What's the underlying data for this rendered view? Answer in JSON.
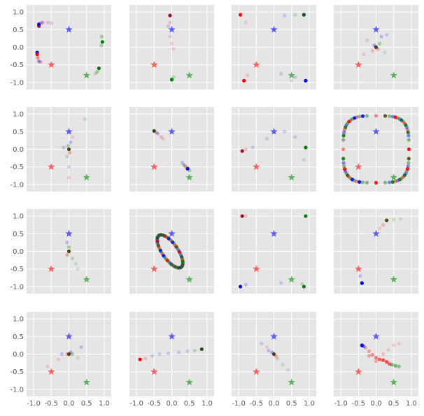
{
  "chart_data": {
    "type": "scatter",
    "layout": {
      "rows": 4,
      "cols": 4,
      "sharex": true,
      "sharey": true
    },
    "xlim": [
      -1.2,
      1.2
    ],
    "ylim": [
      -1.2,
      1.2
    ],
    "xticks": [
      "-1.0",
      "-0.5",
      "0.0",
      "0.5",
      "1.0"
    ],
    "yticks": [
      "1.0",
      "0.5",
      "0.0",
      "-0.5",
      "-1.0"
    ],
    "xtick_values": [
      -1.0,
      -0.5,
      0.0,
      0.5,
      1.0
    ],
    "ytick_values": [
      1.0,
      0.5,
      0.0,
      -0.5,
      -1.0
    ],
    "grid": true,
    "style": {
      "background": "#e5e5e5",
      "grid_color": "#ffffff"
    },
    "anchors": [
      {
        "color": "#4444ff",
        "x": 0.0,
        "y": 0.5
      },
      {
        "color": "#ff4444",
        "x": -0.5,
        "y": -0.5
      },
      {
        "color": "#44aa44",
        "x": 0.5,
        "y": -0.8
      }
    ],
    "colors": {
      "red": "#ff0000",
      "green": "#008000",
      "blue": "#0000ff",
      "dark_green": "#1e4d1e",
      "dark_red": "#9e0f2f",
      "olive": "#4a4a10"
    },
    "panels": [
      {
        "points": [
          {
            "x": -0.85,
            "y": 0.6,
            "c": "red",
            "a": 1
          },
          {
            "x": -0.85,
            "y": 0.65,
            "c": "blue",
            "a": 1
          },
          {
            "x": -0.8,
            "y": 0.68,
            "c": "red",
            "a": 0.3
          },
          {
            "x": -0.75,
            "y": 0.7,
            "c": "blue",
            "a": 0.3
          },
          {
            "x": -0.6,
            "y": 0.7,
            "c": "red",
            "a": 0.2
          },
          {
            "x": -0.5,
            "y": 0.68,
            "c": "blue",
            "a": 0.15
          },
          {
            "x": -0.9,
            "y": -0.15,
            "c": "blue",
            "a": 1
          },
          {
            "x": -0.88,
            "y": -0.3,
            "c": "red",
            "a": 0.4
          },
          {
            "x": -0.85,
            "y": -0.4,
            "c": "blue",
            "a": 0.4
          },
          {
            "x": -0.8,
            "y": -0.42,
            "c": "red",
            "a": 0.3
          },
          {
            "x": -0.9,
            "y": -0.2,
            "c": "red",
            "a": 1
          },
          {
            "x": 0.95,
            "y": 0.15,
            "c": "green",
            "a": 1
          },
          {
            "x": 0.93,
            "y": 0.3,
            "c": "green",
            "a": 0.3
          },
          {
            "x": 0.92,
            "y": 0.05,
            "c": "green",
            "a": 0.3
          },
          {
            "x": 0.85,
            "y": -0.6,
            "c": "green",
            "a": 1
          },
          {
            "x": 0.8,
            "y": -0.7,
            "c": "green",
            "a": 0.3
          },
          {
            "x": 0.75,
            "y": -0.75,
            "c": "green",
            "a": 0.2
          }
        ]
      },
      {
        "points": [
          {
            "x": -0.05,
            "y": 0.9,
            "c": "dark_red",
            "a": 1
          },
          {
            "x": -0.05,
            "y": 0.7,
            "c": "red",
            "a": 0.2
          },
          {
            "x": -0.05,
            "y": 0.3,
            "c": "red",
            "a": 0.15
          },
          {
            "x": 0.0,
            "y": 0.1,
            "c": "red",
            "a": 0.15
          },
          {
            "x": 0.05,
            "y": -0.05,
            "c": "red",
            "a": 0.15
          },
          {
            "x": -0.1,
            "y": 0.6,
            "c": "blue",
            "a": 0.15
          },
          {
            "x": 0.0,
            "y": -0.92,
            "c": "green",
            "a": 1
          },
          {
            "x": 0.05,
            "y": -0.85,
            "c": "green",
            "a": 0.2
          }
        ]
      },
      {
        "points": [
          {
            "x": -0.95,
            "y": 0.92,
            "c": "red",
            "a": 1
          },
          {
            "x": -0.8,
            "y": 0.7,
            "c": "red",
            "a": 0.15
          },
          {
            "x": -0.85,
            "y": -0.95,
            "c": "red",
            "a": 1
          },
          {
            "x": -0.75,
            "y": -0.8,
            "c": "red",
            "a": 0.15
          },
          {
            "x": 0.85,
            "y": 0.92,
            "c": "dark_green",
            "a": 1
          },
          {
            "x": 0.6,
            "y": 0.92,
            "c": "green",
            "a": 0.2
          },
          {
            "x": 0.3,
            "y": 0.9,
            "c": "blue",
            "a": 0.15
          },
          {
            "x": 0.9,
            "y": -0.95,
            "c": "blue",
            "a": 1
          },
          {
            "x": 0.6,
            "y": -0.85,
            "c": "blue",
            "a": 0.15
          },
          {
            "x": 0.2,
            "y": -0.75,
            "c": "blue",
            "a": 0.15
          },
          {
            "x": 0.5,
            "y": -0.95,
            "c": "green",
            "a": 0.15
          }
        ]
      },
      {
        "points": [
          {
            "x": 0.0,
            "y": 0.0,
            "c": "olive",
            "a": 1
          },
          {
            "x": -0.05,
            "y": 0.05,
            "c": "blue",
            "a": 0.3
          },
          {
            "x": 0.05,
            "y": -0.05,
            "c": "red",
            "a": 0.3
          },
          {
            "x": 0.1,
            "y": 0.1,
            "c": "green",
            "a": 0.3
          },
          {
            "x": -0.1,
            "y": -0.1,
            "c": "red",
            "a": 0.2
          },
          {
            "x": 0.15,
            "y": 0.3,
            "c": "blue",
            "a": 0.2
          },
          {
            "x": -0.25,
            "y": 0.2,
            "c": "red",
            "a": 0.15
          },
          {
            "x": 0.25,
            "y": -0.15,
            "c": "green",
            "a": 0.15
          },
          {
            "x": -0.35,
            "y": -0.2,
            "c": "red",
            "a": 0.15
          },
          {
            "x": 0.3,
            "y": 0.35,
            "c": "blue",
            "a": 0.15
          }
        ]
      },
      {
        "points": [
          {
            "x": 0.0,
            "y": 0.0,
            "c": "olive",
            "a": 1
          },
          {
            "x": -0.02,
            "y": 0.1,
            "c": "green",
            "a": 0.3
          },
          {
            "x": 0.02,
            "y": -0.1,
            "c": "red",
            "a": 0.3
          },
          {
            "x": 0.05,
            "y": 0.2,
            "c": "blue",
            "a": 0.2
          },
          {
            "x": -0.05,
            "y": -0.2,
            "c": "green",
            "a": 0.2
          },
          {
            "x": 0.1,
            "y": 0.35,
            "c": "red",
            "a": 0.15
          },
          {
            "x": 0.45,
            "y": 0.85,
            "c": "green",
            "a": 0.15
          },
          {
            "x": 0.0,
            "y": -0.5,
            "c": "blue",
            "a": 0.15
          },
          {
            "x": 0.0,
            "y": -0.8,
            "c": "red",
            "a": 0.15
          },
          {
            "x": -0.15,
            "y": 0.05,
            "c": "blue",
            "a": 0.2
          }
        ]
      },
      {
        "points": [
          {
            "x": -0.5,
            "y": 0.52,
            "c": "dark_green",
            "a": 1
          },
          {
            "x": -0.45,
            "y": 0.48,
            "c": "red",
            "a": 0.3
          },
          {
            "x": -0.4,
            "y": 0.45,
            "c": "blue",
            "a": 0.3
          },
          {
            "x": -0.3,
            "y": 0.35,
            "c": "red",
            "a": 0.2
          },
          {
            "x": -0.25,
            "y": 0.3,
            "c": "red",
            "a": 0.15
          },
          {
            "x": 0.45,
            "y": -0.55,
            "c": "blue",
            "a": 1
          },
          {
            "x": 0.4,
            "y": -0.5,
            "c": "red",
            "a": 0.4
          },
          {
            "x": 0.35,
            "y": -0.45,
            "c": "green",
            "a": 0.4
          },
          {
            "x": 0.3,
            "y": -0.38,
            "c": "blue",
            "a": 0.2
          },
          {
            "x": 0.5,
            "y": -0.6,
            "c": "green",
            "a": 0.3
          }
        ]
      },
      {
        "points": [
          {
            "x": -0.9,
            "y": -0.05,
            "c": "dark_red",
            "a": 1
          },
          {
            "x": -0.8,
            "y": 0.0,
            "c": "red",
            "a": 0.2
          },
          {
            "x": -0.6,
            "y": 0.05,
            "c": "blue",
            "a": 0.15
          },
          {
            "x": -0.2,
            "y": 0.3,
            "c": "blue",
            "a": 0.15
          },
          {
            "x": 0.3,
            "y": 0.5,
            "c": "blue",
            "a": 0.15
          },
          {
            "x": 0.9,
            "y": 0.05,
            "c": "green",
            "a": 1
          },
          {
            "x": 0.85,
            "y": -0.3,
            "c": "green",
            "a": 0.15
          },
          {
            "x": 0.6,
            "y": 0.35,
            "c": "blue",
            "a": 0.15
          }
        ]
      },
      {
        "ring": {
          "cx": 0.0,
          "cy": 0.0,
          "rx": 0.93,
          "ry": 0.95,
          "n": 64,
          "square": true
        }
      },
      {
        "points": [
          {
            "x": 0.0,
            "y": 0.0,
            "c": "olive",
            "a": 1
          },
          {
            "x": 0.0,
            "y": 0.12,
            "c": "green",
            "a": 0.3
          },
          {
            "x": -0.05,
            "y": -0.1,
            "c": "red",
            "a": 0.3
          },
          {
            "x": 0.1,
            "y": -0.2,
            "c": "green",
            "a": 0.2
          },
          {
            "x": 0.2,
            "y": -0.35,
            "c": "green",
            "a": 0.15
          },
          {
            "x": 0.25,
            "y": -0.5,
            "c": "green",
            "a": 0.15
          },
          {
            "x": -0.05,
            "y": 0.25,
            "c": "blue",
            "a": 0.2
          }
        ]
      },
      {
        "ellipse": {
          "cx": -0.05,
          "cy": 0.0,
          "rx": 0.55,
          "ry": 0.22,
          "rot": -55,
          "n": 60
        }
      },
      {
        "points": [
          {
            "x": -0.9,
            "y": 1.0,
            "c": "dark_red",
            "a": 1
          },
          {
            "x": -0.8,
            "y": 1.0,
            "c": "red",
            "a": 0.2
          },
          {
            "x": -0.95,
            "y": -1.0,
            "c": "blue",
            "a": 1
          },
          {
            "x": -0.8,
            "y": -0.95,
            "c": "blue",
            "a": 0.2
          },
          {
            "x": 0.9,
            "y": 1.0,
            "c": "green",
            "a": 1
          },
          {
            "x": 0.85,
            "y": -1.0,
            "c": "green",
            "a": 1
          },
          {
            "x": 0.8,
            "y": -0.92,
            "c": "green",
            "a": 0.2
          },
          {
            "x": 0.2,
            "y": -0.9,
            "c": "blue",
            "a": 0.15
          }
        ]
      },
      {
        "points": [
          {
            "x": 0.3,
            "y": 0.88,
            "c": "olive",
            "a": 1
          },
          {
            "x": 0.2,
            "y": 0.75,
            "c": "red",
            "a": 0.2
          },
          {
            "x": 0.1,
            "y": 0.65,
            "c": "red",
            "a": 0.15
          },
          {
            "x": 0.5,
            "y": 0.9,
            "c": "green",
            "a": 0.15
          },
          {
            "x": 0.7,
            "y": 0.92,
            "c": "green",
            "a": 0.15
          },
          {
            "x": -0.4,
            "y": -0.9,
            "c": "blue",
            "a": 1
          },
          {
            "x": -0.45,
            "y": -0.7,
            "c": "blue",
            "a": 0.2
          }
        ]
      },
      {
        "points": [
          {
            "x": 0.0,
            "y": 0.0,
            "c": "olive",
            "a": 1
          },
          {
            "x": 0.05,
            "y": 0.05,
            "c": "blue",
            "a": 0.3
          },
          {
            "x": -0.05,
            "y": 0.0,
            "c": "red",
            "a": 0.3
          },
          {
            "x": 0.1,
            "y": 0.0,
            "c": "green",
            "a": 0.3
          },
          {
            "x": -0.2,
            "y": 0.0,
            "c": "blue",
            "a": 0.2
          },
          {
            "x": 0.35,
            "y": 0.2,
            "c": "blue",
            "a": 0.2
          },
          {
            "x": -0.6,
            "y": -0.35,
            "c": "red",
            "a": 0.15
          },
          {
            "x": -0.3,
            "y": -0.15,
            "c": "red",
            "a": 0.15
          },
          {
            "x": 0.25,
            "y": -0.1,
            "c": "green",
            "a": 0.15
          }
        ]
      },
      {
        "points": [
          {
            "x": -0.9,
            "y": -0.15,
            "c": "red",
            "a": 1
          },
          {
            "x": -0.75,
            "y": -0.12,
            "c": "red",
            "a": 0.2
          },
          {
            "x": -0.55,
            "y": -0.05,
            "c": "blue",
            "a": 0.15
          },
          {
            "x": -0.35,
            "y": 0.0,
            "c": "blue",
            "a": 0.15
          },
          {
            "x": -0.1,
            "y": 0.02,
            "c": "blue",
            "a": 0.15
          },
          {
            "x": 0.2,
            "y": 0.05,
            "c": "blue",
            "a": 0.15
          },
          {
            "x": 0.45,
            "y": 0.08,
            "c": "blue",
            "a": 0.15
          },
          {
            "x": 0.65,
            "y": 0.1,
            "c": "green",
            "a": 0.2
          },
          {
            "x": 0.85,
            "y": 0.14,
            "c": "dark_green",
            "a": 1
          }
        ]
      },
      {
        "points": [
          {
            "x": 0.0,
            "y": 0.0,
            "c": "olive",
            "a": 1
          },
          {
            "x": -0.05,
            "y": 0.05,
            "c": "blue",
            "a": 0.3
          },
          {
            "x": 0.05,
            "y": -0.05,
            "c": "red",
            "a": 0.3
          },
          {
            "x": 0.1,
            "y": -0.12,
            "c": "green",
            "a": 0.2
          },
          {
            "x": -0.15,
            "y": 0.1,
            "c": "blue",
            "a": 0.2
          },
          {
            "x": 0.25,
            "y": -0.3,
            "c": "green",
            "a": 0.15
          },
          {
            "x": -0.35,
            "y": 0.3,
            "c": "blue",
            "a": 0.15
          },
          {
            "x": 0.4,
            "y": -0.45,
            "c": "green",
            "a": 0.15
          },
          {
            "x": -0.2,
            "y": 0.2,
            "c": "red",
            "a": 0.15
          }
        ]
      },
      {
        "points": [
          {
            "x": -0.4,
            "y": 0.25,
            "c": "blue",
            "a": 1
          },
          {
            "x": -0.35,
            "y": 0.22,
            "c": "blue",
            "a": 0.5
          },
          {
            "x": -0.3,
            "y": 0.18,
            "c": "red",
            "a": 0.3
          },
          {
            "x": -0.2,
            "y": 0.08,
            "c": "red",
            "a": 0.3
          },
          {
            "x": -0.1,
            "y": -0.02,
            "c": "red",
            "a": 0.4
          },
          {
            "x": 0.0,
            "y": -0.1,
            "c": "red",
            "a": 0.5
          },
          {
            "x": 0.1,
            "y": -0.15,
            "c": "red",
            "a": 0.6
          },
          {
            "x": 0.2,
            "y": -0.17,
            "c": "red",
            "a": 0.7
          },
          {
            "x": 0.3,
            "y": -0.22,
            "c": "red",
            "a": 0.7
          },
          {
            "x": 0.38,
            "y": -0.28,
            "c": "red",
            "a": 0.6
          },
          {
            "x": 0.45,
            "y": -0.3,
            "c": "green",
            "a": 0.5
          },
          {
            "x": 0.55,
            "y": -0.33,
            "c": "green",
            "a": 0.5
          },
          {
            "x": 0.65,
            "y": -0.35,
            "c": "green",
            "a": 0.4
          },
          {
            "x": 0.2,
            "y": 0.0,
            "c": "red",
            "a": 0.2
          },
          {
            "x": 0.35,
            "y": 0.12,
            "c": "red",
            "a": 0.15
          },
          {
            "x": 0.5,
            "y": 0.25,
            "c": "red",
            "a": 0.15
          },
          {
            "x": 0.65,
            "y": 0.3,
            "c": "red",
            "a": 0.12
          },
          {
            "x": -0.2,
            "y": -0.05,
            "c": "red",
            "a": 0.3
          },
          {
            "x": 0.0,
            "y": -0.2,
            "c": "red",
            "a": 0.3
          }
        ]
      }
    ]
  }
}
